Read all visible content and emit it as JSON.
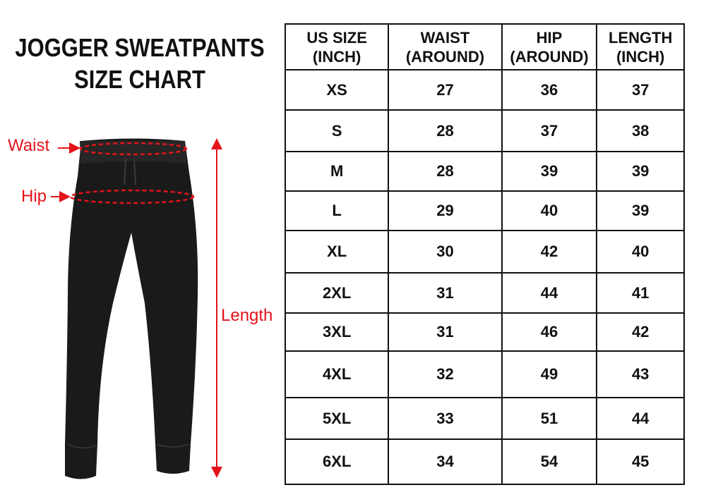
{
  "title": {
    "line1": "JOGGER SWEATPANTS",
    "line2": "SIZE CHART"
  },
  "labels": {
    "waist": "Waist",
    "hip": "Hip",
    "length": "Length"
  },
  "colors": {
    "annotation": "#e3131b",
    "pants": "#1a1a1a"
  },
  "table": {
    "headers": [
      {
        "line1": "US SIZE",
        "line2": "(INCH)"
      },
      {
        "line1": "WAIST",
        "line2": "(AROUND)"
      },
      {
        "line1": "HIP",
        "line2": "(AROUND)"
      },
      {
        "line1": "LENGTH",
        "line2": "(INCH)"
      }
    ],
    "rows": [
      [
        "XS",
        "27",
        "36",
        "37"
      ],
      [
        "S",
        "28",
        "37",
        "38"
      ],
      [
        "M",
        "28",
        "39",
        "39"
      ],
      [
        "L",
        "29",
        "40",
        "39"
      ],
      [
        "XL",
        "30",
        "42",
        "40"
      ],
      [
        "2XL",
        "31",
        "44",
        "41"
      ],
      [
        "3XL",
        "31",
        "46",
        "42"
      ],
      [
        "4XL",
        "32",
        "49",
        "43"
      ],
      [
        "5XL",
        "33",
        "51",
        "44"
      ],
      [
        "6XL",
        "34",
        "54",
        "45"
      ]
    ]
  }
}
